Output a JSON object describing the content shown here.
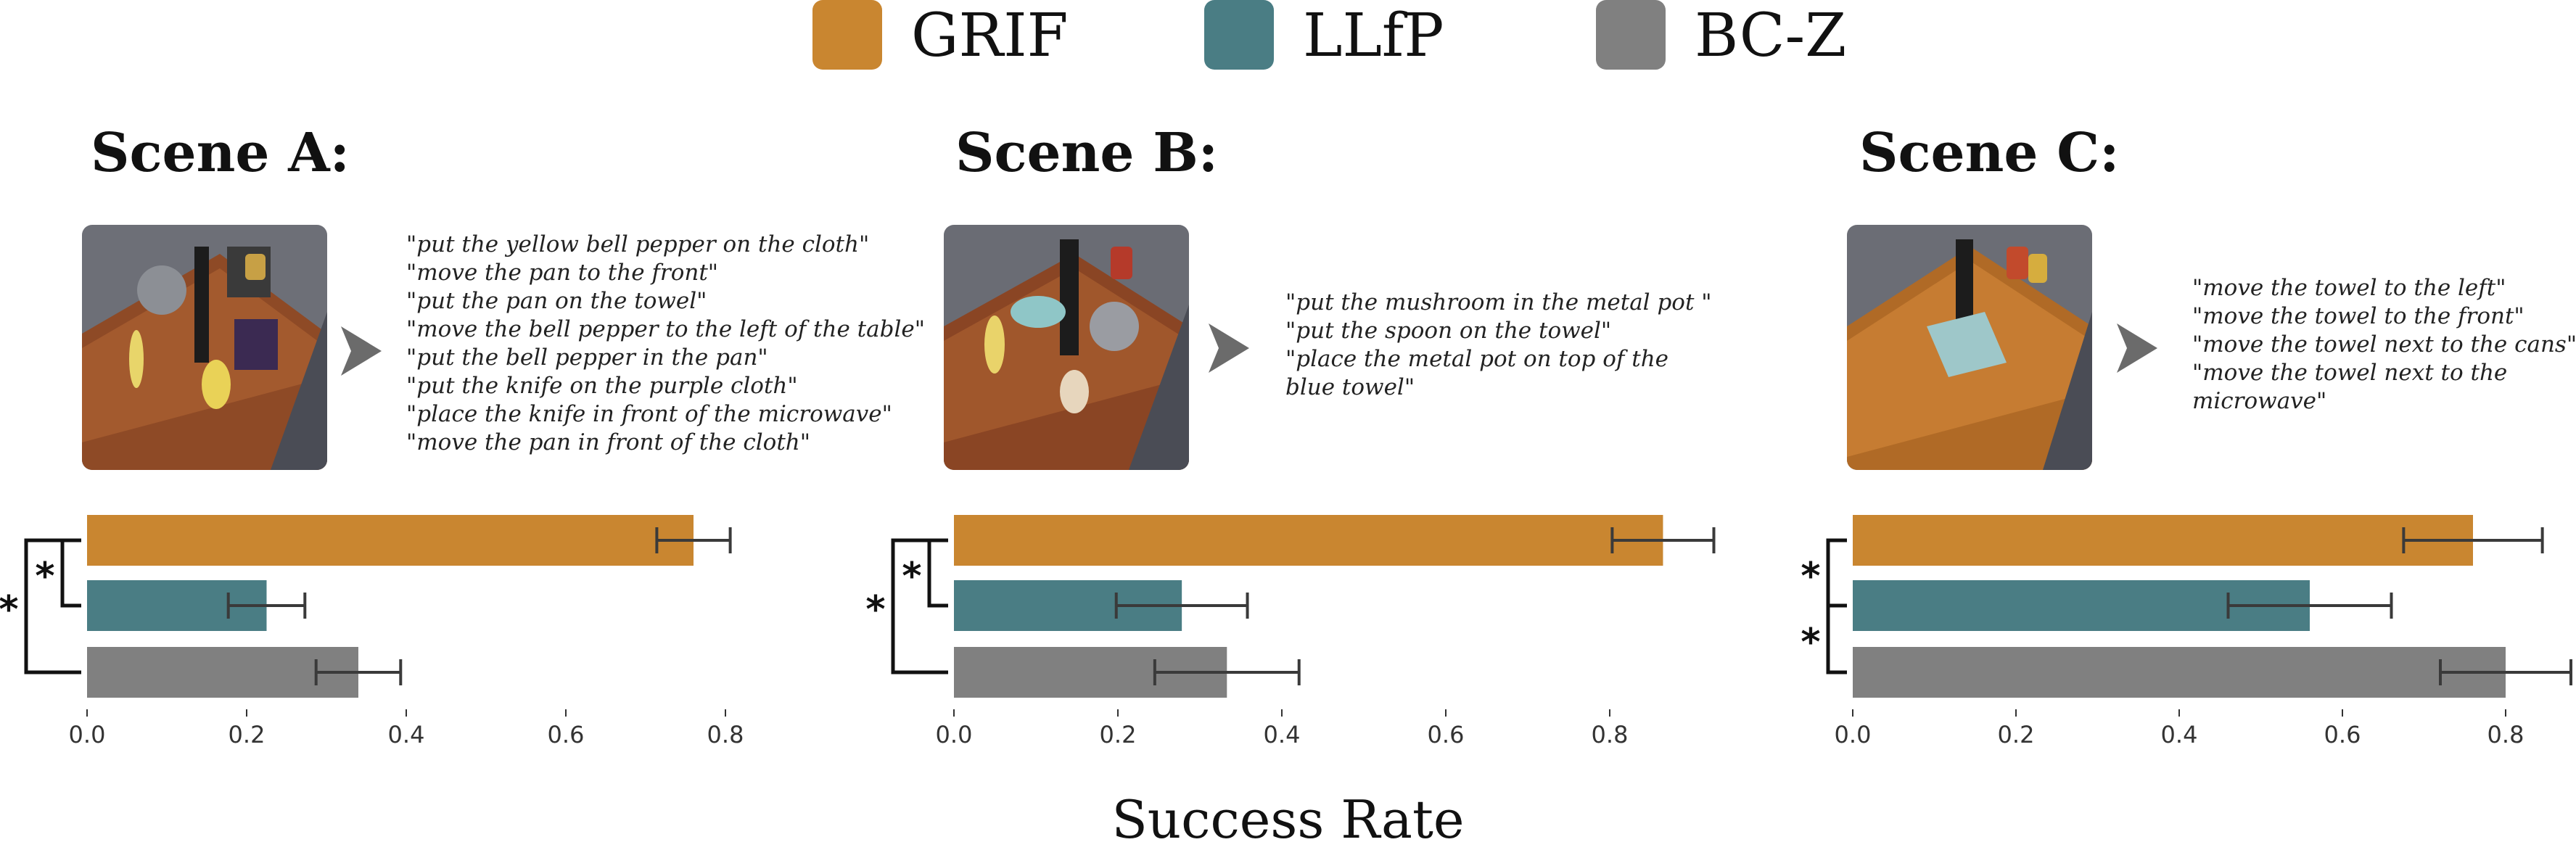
{
  "colors": {
    "GRIF": "#C98630",
    "LLfP": "#4A7D84",
    "BC-Z": "#808080",
    "error": "#3a3a3a"
  },
  "legend": [
    {
      "label": "GRIF",
      "color": "#C98630"
    },
    {
      "label": "LLfP",
      "color": "#4A7D84"
    },
    {
      "label": "BC-Z",
      "color": "#808080"
    }
  ],
  "scenes": [
    {
      "title": "Scene A:",
      "prompts": [
        "\"put the yellow bell pepper on the cloth\"",
        "\"move the pan to the front\"",
        "\"put the pan on the towel\"",
        "\"move the bell pepper to the left of the table\"",
        "\"put the bell pepper in the pan\"",
        "\"put the knife on the purple cloth\"",
        "\"place the knife in front of the microwave\"",
        "\"move the pan in front of the cloth\""
      ]
    },
    {
      "title": "Scene B:",
      "prompts": [
        "\"put the mushroom in the metal pot \"",
        "\"put the spoon on the towel\"",
        "\"place the metal pot on top of the blue towel\""
      ]
    },
    {
      "title": "Scene C:",
      "prompts": [
        "\"move the towel to the left\"",
        "\"move the towel to the front\"",
        "\"move the towel next to the cans\"",
        "\"move the towel next to the microwave\""
      ]
    }
  ],
  "chart_data": [
    {
      "type": "bar",
      "orientation": "horizontal",
      "categories": [
        "GRIF",
        "LLfP",
        "BC-Z"
      ],
      "values": [
        0.76,
        0.225,
        0.34
      ],
      "errors": [
        0.046,
        0.048,
        0.053
      ],
      "xlim": [
        0,
        0.9
      ],
      "xticks": [
        "0.0",
        "0.2",
        "0.4",
        "0.6",
        "0.8"
      ],
      "significance": [
        {
          "from": "GRIF",
          "to": "LLfP",
          "label": "*",
          "level": 1
        },
        {
          "from": "GRIF",
          "to": "BC-Z",
          "label": "*",
          "level": 2
        }
      ]
    },
    {
      "type": "bar",
      "orientation": "horizontal",
      "categories": [
        "GRIF",
        "LLfP",
        "BC-Z"
      ],
      "values": [
        0.865,
        0.278,
        0.333
      ],
      "errors": [
        0.062,
        0.08,
        0.088
      ],
      "xlim": [
        0,
        0.9
      ],
      "xticks": [
        "0.0",
        "0.2",
        "0.4",
        "0.6",
        "0.8"
      ],
      "significance": [
        {
          "from": "GRIF",
          "to": "LLfP",
          "label": "*",
          "level": 1
        },
        {
          "from": "GRIF",
          "to": "BC-Z",
          "label": "*",
          "level": 2
        }
      ]
    },
    {
      "type": "bar",
      "orientation": "horizontal",
      "categories": [
        "GRIF",
        "LLfP",
        "BC-Z"
      ],
      "values": [
        0.76,
        0.56,
        0.8
      ],
      "errors": [
        0.085,
        0.1,
        0.08
      ],
      "xlim": [
        0,
        0.9
      ],
      "xticks": [
        "0.0",
        "0.2",
        "0.4",
        "0.6",
        "0.8"
      ],
      "significance": [
        {
          "from": "GRIF",
          "to": "LLfP",
          "label": "*",
          "level": 1
        },
        {
          "from": "LLfP",
          "to": "BC-Z",
          "label": "*",
          "level": 1
        }
      ]
    }
  ],
  "xlabel": "Success Rate"
}
